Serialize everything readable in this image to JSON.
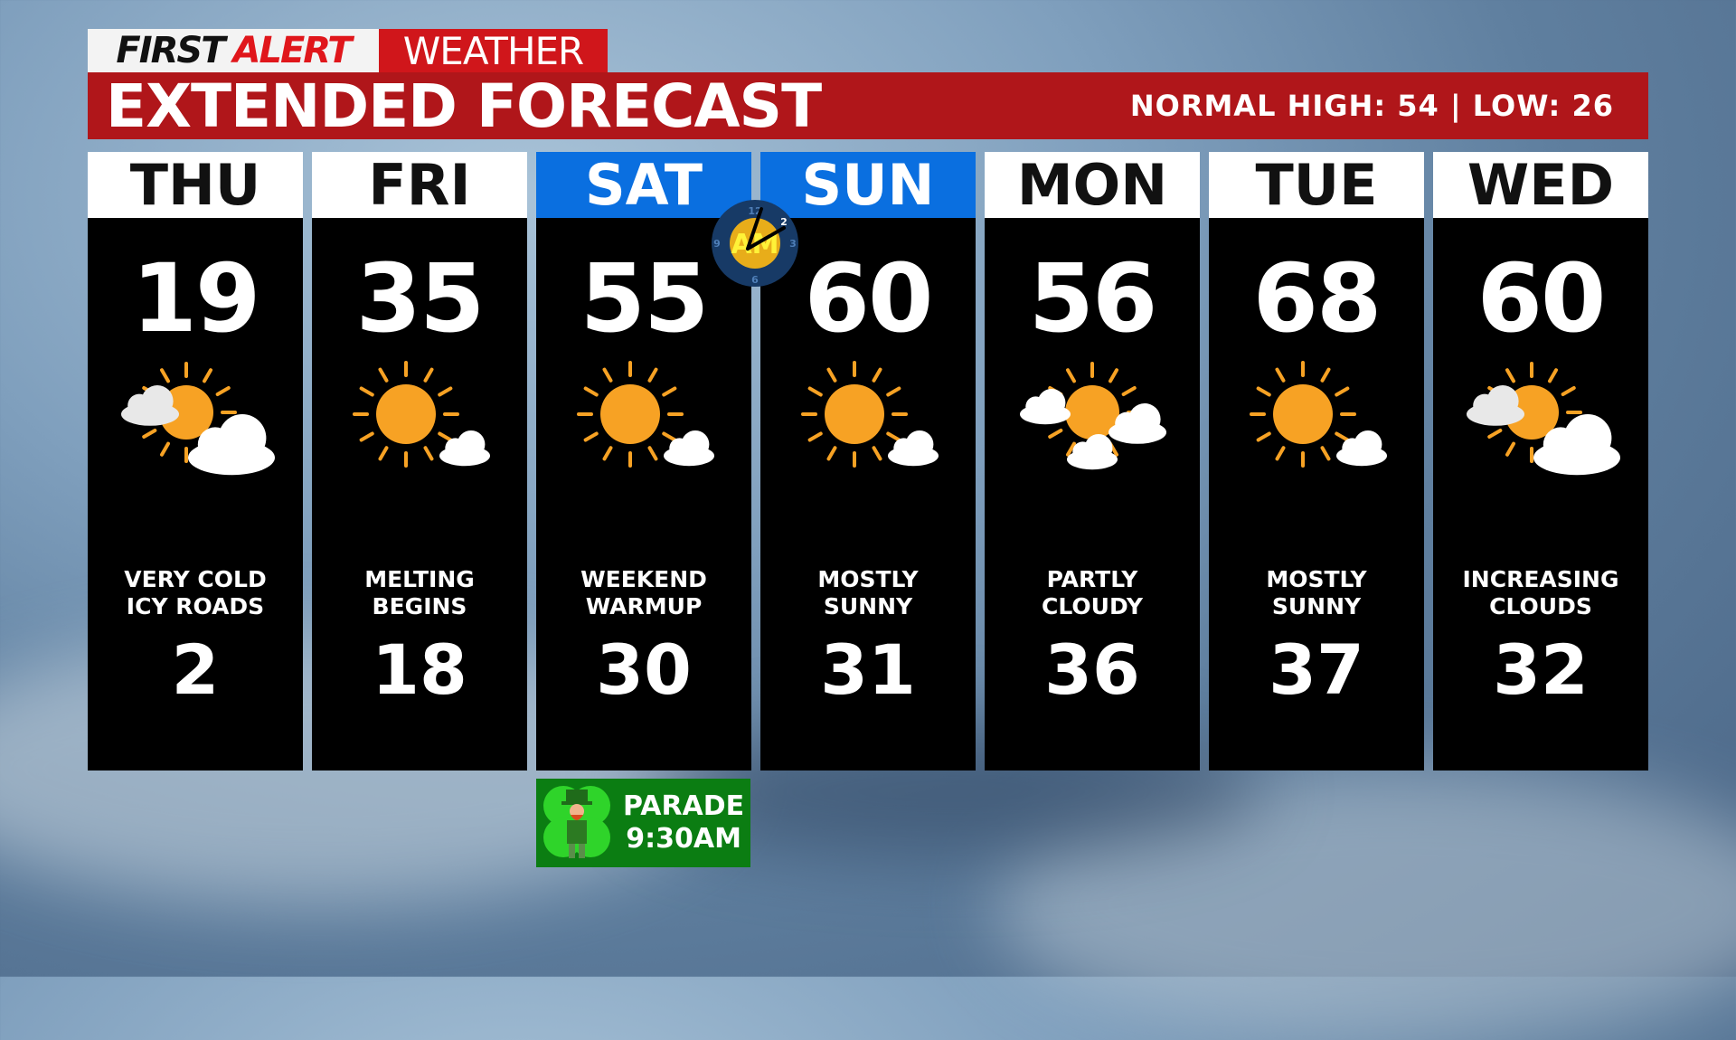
{
  "logo": {
    "first": "FIRST",
    "alert": "ALERT",
    "weather": "WEATHER"
  },
  "banner": {
    "title": "EXTENDED FORECAST",
    "normals": "NORMAL HIGH: 54 | LOW: 26"
  },
  "days": [
    {
      "day": "THU",
      "high": "19",
      "desc1": "VERY COLD",
      "desc2": "ICY ROADS",
      "low": "2",
      "icon": "partly-cloudy-icon",
      "weekend": false
    },
    {
      "day": "FRI",
      "high": "35",
      "desc1": "MELTING",
      "desc2": "BEGINS",
      "low": "18",
      "icon": "mostly-sunny-icon",
      "weekend": false
    },
    {
      "day": "SAT",
      "high": "55",
      "desc1": "WEEKEND",
      "desc2": "WARMUP",
      "low": "30",
      "icon": "mostly-sunny-icon",
      "weekend": true
    },
    {
      "day": "SUN",
      "high": "60",
      "desc1": "MOSTLY",
      "desc2": "SUNNY",
      "low": "31",
      "icon": "mostly-sunny-icon",
      "weekend": true
    },
    {
      "day": "MON",
      "high": "56",
      "desc1": "PARTLY",
      "desc2": "CLOUDY",
      "low": "36",
      "icon": "partly-cloudy-two-clouds-icon",
      "weekend": false
    },
    {
      "day": "TUE",
      "high": "68",
      "desc1": "MOSTLY",
      "desc2": "SUNNY",
      "low": "37",
      "icon": "mostly-sunny-icon",
      "weekend": false
    },
    {
      "day": "WED",
      "high": "60",
      "desc1": "INCREASING",
      "desc2": "CLOUDS",
      "low": "32",
      "icon": "partly-cloudy-icon",
      "weekend": false
    }
  ],
  "clock": {
    "label": "AM",
    "numbers": [
      "12",
      "3",
      "6",
      "9",
      "2"
    ]
  },
  "parade": {
    "line1": "PARADE",
    "line2": "9:30AM"
  },
  "colors": {
    "banner": "#b0161a",
    "weekend": "#0a6fe0",
    "sun": "#f7a224",
    "parade": "#0b7d12"
  }
}
